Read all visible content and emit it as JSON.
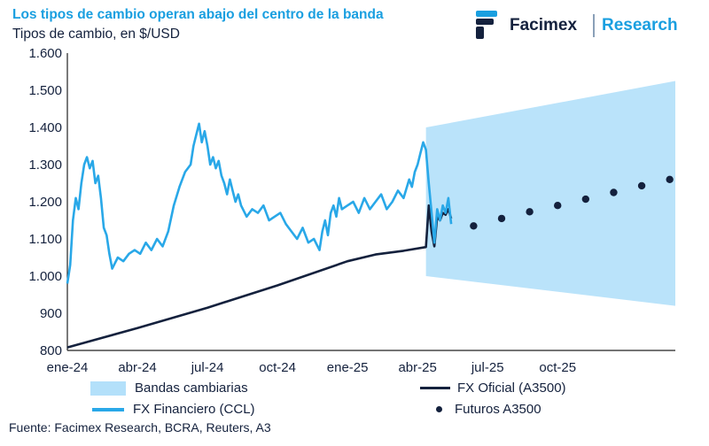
{
  "header": {
    "title": "Los tipos de cambio operan abajo del centro de la banda",
    "subtitle": "Tipos de cambio, en $/USD"
  },
  "brand": {
    "name": "Facimex",
    "unit": "Research"
  },
  "colors": {
    "accent": "#1a9fe0",
    "navy": "#14213d",
    "band": "#b3e0fa",
    "ccl": "#29a8e8"
  },
  "chart_data": {
    "type": "line",
    "title": "Los tipos de cambio operan abajo del centro de la banda",
    "ylabel": "Tipos de cambio, en $/USD",
    "xlabel": "",
    "xlim": [
      2024.0,
      2026.17
    ],
    "ylim": [
      800,
      1600
    ],
    "y_ticks": [
      800,
      900,
      1000,
      1100,
      1200,
      1300,
      1400,
      1500,
      1600
    ],
    "y_tick_labels": [
      "800",
      "900",
      "1.000",
      "1.100",
      "1.200",
      "1.300",
      "1.400",
      "1.500",
      "1.600"
    ],
    "x_ticks": [
      2024.0,
      2024.25,
      2024.5,
      2024.75,
      2025.0,
      2025.25,
      2025.5,
      2025.75
    ],
    "x_tick_labels": [
      "ene-24",
      "abr-24",
      "jul-24",
      "oct-24",
      "ene-25",
      "abr-25",
      "jul-25",
      "oct-25"
    ],
    "grid": false,
    "series": [
      {
        "name": "Bandas cambiarias",
        "kind": "band",
        "x": [
          2025.28,
          2026.17
        ],
        "lower": [
          1000,
          920
        ],
        "upper": [
          1400,
          1525
        ]
      },
      {
        "name": "FX Financiero (CCL)",
        "kind": "line",
        "x": [
          2024.0,
          2024.01,
          2024.02,
          2024.03,
          2024.04,
          2024.05,
          2024.06,
          2024.07,
          2024.08,
          2024.09,
          2024.1,
          2024.11,
          2024.12,
          2024.13,
          2024.14,
          2024.15,
          2024.16,
          2024.18,
          2024.2,
          2024.22,
          2024.24,
          2024.26,
          2024.28,
          2024.3,
          2024.32,
          2024.34,
          2024.36,
          2024.38,
          2024.4,
          2024.42,
          2024.44,
          2024.45,
          2024.46,
          2024.47,
          2024.48,
          2024.49,
          2024.5,
          2024.51,
          2024.52,
          2024.53,
          2024.54,
          2024.55,
          2024.56,
          2024.57,
          2024.58,
          2024.59,
          2024.6,
          2024.61,
          2024.62,
          2024.64,
          2024.66,
          2024.68,
          2024.7,
          2024.72,
          2024.74,
          2024.76,
          2024.78,
          2024.8,
          2024.82,
          2024.84,
          2024.86,
          2024.88,
          2024.9,
          2024.91,
          2024.92,
          2024.93,
          2024.94,
          2024.95,
          2024.96,
          2024.97,
          2024.98,
          2025.0,
          2025.02,
          2025.04,
          2025.06,
          2025.08,
          2025.1,
          2025.12,
          2025.14,
          2025.16,
          2025.18,
          2025.2,
          2025.22,
          2025.23,
          2025.24,
          2025.25,
          2025.26,
          2025.27,
          2025.28,
          2025.29,
          2025.3,
          2025.31,
          2025.32,
          2025.33,
          2025.34,
          2025.35,
          2025.36,
          2025.37
        ],
        "y": [
          980,
          1030,
          1150,
          1210,
          1180,
          1250,
          1300,
          1320,
          1290,
          1310,
          1250,
          1270,
          1210,
          1130,
          1110,
          1060,
          1020,
          1050,
          1040,
          1060,
          1070,
          1060,
          1090,
          1070,
          1100,
          1080,
          1120,
          1190,
          1240,
          1280,
          1300,
          1350,
          1380,
          1410,
          1360,
          1390,
          1350,
          1300,
          1320,
          1290,
          1310,
          1270,
          1250,
          1220,
          1260,
          1230,
          1200,
          1220,
          1190,
          1160,
          1180,
          1170,
          1190,
          1150,
          1160,
          1170,
          1140,
          1120,
          1100,
          1130,
          1090,
          1100,
          1070,
          1120,
          1150,
          1110,
          1170,
          1190,
          1160,
          1210,
          1180,
          1190,
          1200,
          1170,
          1210,
          1180,
          1200,
          1220,
          1180,
          1200,
          1230,
          1210,
          1260,
          1240,
          1280,
          1300,
          1330,
          1360,
          1340,
          1250,
          1170,
          1090,
          1180,
          1150,
          1190,
          1170,
          1210,
          1140
        ]
      },
      {
        "name": "FX Oficial (A3500)",
        "kind": "line",
        "x": [
          2024.0,
          2024.25,
          2024.5,
          2024.75,
          2025.0,
          2025.1,
          2025.2,
          2025.28,
          2025.29,
          2025.3,
          2025.31,
          2025.32,
          2025.33,
          2025.34,
          2025.35,
          2025.36,
          2025.37
        ],
        "y": [
          808,
          860,
          915,
          975,
          1040,
          1058,
          1068,
          1078,
          1190,
          1120,
          1080,
          1160,
          1150,
          1170,
          1165,
          1180,
          1155
        ]
      },
      {
        "name": "Futuros A3500",
        "kind": "scatter",
        "x": [
          2025.45,
          2025.55,
          2025.65,
          2025.75,
          2025.85,
          2025.95,
          2026.05,
          2026.15
        ],
        "y": [
          1135,
          1155,
          1173,
          1190,
          1207,
          1225,
          1243,
          1260
        ]
      }
    ],
    "legend": [
      "Bandas cambiarias",
      "FX Oficial (A3500)",
      "FX Financiero (CCL)",
      "Futuros A3500"
    ],
    "legend_position": "bottom"
  },
  "source": "Fuente: Facimex Research, BCRA, Reuters, A3"
}
